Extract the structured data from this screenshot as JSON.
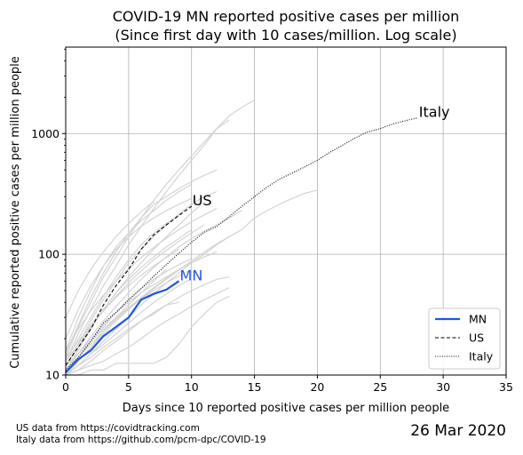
{
  "chart_data": {
    "type": "line",
    "title": "COVID-19 MN reported positive cases per million",
    "subtitle": "(Since first day with 10 cases/million. Log scale)",
    "xlabel": "Days since 10 reported positive cases per million people",
    "ylabel": "Cumulative reported positive cases per million people",
    "xlim": [
      0,
      35
    ],
    "ylim": [
      10,
      5200
    ],
    "y_scale": "log",
    "grid": true,
    "x_ticks": [
      "0",
      "5",
      "10",
      "15",
      "20",
      "25",
      "30",
      "35"
    ],
    "y_ticks": [
      "10",
      "100",
      "1000"
    ],
    "legend": {
      "position": "lower-right",
      "entries": [
        "MN",
        "US",
        "Italy"
      ]
    },
    "colors": {
      "MN": "#1f55e6",
      "US": "#000000",
      "Italy": "#000000",
      "states": "#d3d3d3"
    },
    "series": [
      {
        "name": "MN",
        "style": "solid",
        "x": [
          0,
          1,
          2,
          3,
          4,
          5,
          6,
          7,
          8,
          9
        ],
        "y": [
          10.5,
          13.5,
          16,
          21,
          25,
          30,
          42,
          47,
          51,
          60
        ]
      },
      {
        "name": "US",
        "style": "dashed",
        "x": [
          0,
          1,
          2,
          3,
          4,
          5,
          6,
          7,
          8,
          9,
          10
        ],
        "y": [
          12,
          17,
          24,
          38,
          55,
          75,
          110,
          145,
          175,
          210,
          250
        ]
      },
      {
        "name": "Italy",
        "style": "dotted",
        "x": [
          0,
          1,
          2,
          3,
          4,
          5,
          6,
          7,
          8,
          9,
          10,
          11,
          12,
          13,
          14,
          15,
          16,
          17,
          18,
          19,
          20,
          21,
          22,
          23,
          24,
          25,
          26,
          27,
          28
        ],
        "y": [
          11,
          14,
          19,
          27,
          33,
          42,
          52,
          66,
          82,
          102,
          126,
          152,
          170,
          205,
          250,
          300,
          360,
          420,
          470,
          530,
          600,
          700,
          800,
          920,
          1030,
          1100,
          1200,
          1280,
          1350
        ]
      }
    ],
    "background_series": [
      {
        "x": [
          0,
          1,
          2,
          3,
          4,
          5,
          6,
          7,
          8,
          9,
          10,
          11,
          12,
          13,
          14,
          15
        ],
        "y": [
          14,
          25,
          40,
          65,
          95,
          140,
          200,
          280,
          380,
          500,
          650,
          850,
          1100,
          1400,
          1650,
          1900
        ]
      },
      {
        "x": [
          0,
          1,
          2,
          3,
          4,
          5,
          6,
          7,
          8,
          9,
          10,
          11,
          12,
          13
        ],
        "y": [
          13,
          22,
          35,
          55,
          80,
          120,
          170,
          240,
          330,
          450,
          600,
          800,
          1100,
          1300
        ]
      },
      {
        "x": [
          0,
          1,
          2,
          3,
          4,
          5,
          6,
          7,
          8,
          9,
          10,
          11,
          12
        ],
        "y": [
          15,
          26,
          44,
          70,
          105,
          150,
          200,
          260,
          300,
          350,
          400,
          450,
          500
        ]
      },
      {
        "x": [
          0,
          1,
          2,
          3,
          4,
          5,
          6,
          7,
          8,
          9,
          10,
          11,
          12
        ],
        "y": [
          12,
          18,
          28,
          42,
          60,
          85,
          110,
          140,
          175,
          215,
          260,
          300,
          330
        ]
      },
      {
        "x": [
          0,
          1,
          2,
          3,
          4,
          5,
          6,
          7,
          8,
          9,
          10
        ],
        "y": [
          16,
          30,
          50,
          80,
          115,
          150,
          190,
          230,
          280,
          330,
          380
        ]
      },
      {
        "x": [
          0,
          1,
          2,
          3,
          4,
          5,
          6,
          7,
          8,
          9,
          10,
          11
        ],
        "y": [
          11,
          16,
          24,
          35,
          48,
          65,
          85,
          110,
          140,
          175,
          220,
          270
        ]
      },
      {
        "x": [
          0,
          1,
          2,
          3,
          4,
          5,
          6,
          7,
          8,
          9,
          10,
          11,
          12,
          13,
          14,
          15,
          16,
          17,
          18,
          19,
          20
        ],
        "y": [
          10,
          12,
          15,
          19,
          24,
          30,
          38,
          47,
          58,
          70,
          85,
          100,
          120,
          140,
          160,
          200,
          230,
          260,
          290,
          320,
          340
        ]
      },
      {
        "x": [
          0,
          1,
          2,
          3,
          4,
          5,
          6,
          7,
          8,
          9,
          10,
          11,
          12,
          13,
          14
        ],
        "y": [
          11,
          15,
          21,
          28,
          37,
          48,
          62,
          78,
          95,
          115,
          135,
          155,
          175,
          200,
          230
        ]
      },
      {
        "x": [
          0,
          1,
          2,
          3,
          4,
          5,
          6,
          7,
          8,
          9,
          10
        ],
        "y": [
          20,
          35,
          55,
          80,
          110,
          140,
          170,
          200,
          230,
          260,
          290
        ]
      },
      {
        "x": [
          0,
          1,
          2,
          3,
          4,
          5,
          6,
          7,
          8,
          9
        ],
        "y": [
          13,
          20,
          30,
          45,
          65,
          90,
          120,
          150,
          180,
          210
        ]
      },
      {
        "x": [
          0,
          1,
          2,
          3,
          4,
          5,
          6,
          7,
          8,
          9,
          10
        ],
        "y": [
          12,
          17,
          25,
          35,
          48,
          62,
          78,
          95,
          115,
          135,
          160
        ]
      },
      {
        "x": [
          0,
          1,
          2,
          3,
          4,
          5,
          6,
          7,
          8,
          9,
          10
        ],
        "y": [
          11,
          14,
          19,
          25,
          33,
          42,
          52,
          62,
          72,
          82,
          92
        ]
      },
      {
        "x": [
          0,
          1,
          2,
          3,
          4,
          5,
          6,
          7,
          8,
          9
        ],
        "y": [
          14,
          19,
          26,
          34,
          44,
          55,
          67,
          80,
          94,
          110
        ]
      },
      {
        "x": [
          0,
          1,
          2,
          3,
          4,
          5,
          6,
          7,
          8,
          9,
          10,
          11,
          12
        ],
        "y": [
          11,
          15,
          20,
          26,
          33,
          40,
          48,
          56,
          65,
          75,
          85,
          95,
          105
        ]
      },
      {
        "x": [
          0,
          1,
          2,
          3,
          4,
          5,
          6,
          7,
          8,
          9,
          10,
          11,
          12,
          13
        ],
        "y": [
          10,
          12,
          14,
          17,
          20,
          24,
          28,
          32,
          38,
          44,
          50,
          56,
          62,
          65
        ]
      },
      {
        "x": [
          0,
          1,
          2,
          3,
          4,
          5,
          6,
          7,
          8,
          9,
          10,
          11,
          12,
          13
        ],
        "y": [
          10,
          11,
          12,
          13,
          15,
          17,
          20,
          24,
          28,
          32,
          37,
          42,
          47,
          53
        ]
      },
      {
        "x": [
          0,
          1,
          2,
          3,
          4,
          5,
          6,
          7,
          8,
          9,
          10,
          11,
          12,
          13
        ],
        "y": [
          10,
          10,
          11,
          11,
          12.5,
          12.5,
          12.5,
          12.5,
          14,
          18,
          25,
          32,
          40,
          45
        ]
      },
      {
        "x": [
          0,
          1,
          2,
          3,
          4,
          5,
          6,
          7,
          8,
          9,
          10
        ],
        "y": [
          12,
          15,
          19,
          24,
          30,
          36,
          43,
          50,
          58,
          66,
          75
        ]
      },
      {
        "x": [
          0,
          1,
          2,
          3,
          4,
          5,
          6,
          7,
          8
        ],
        "y": [
          10,
          13,
          17,
          23,
          30,
          38,
          48,
          60,
          75
        ]
      },
      {
        "x": [
          0,
          1,
          2,
          3,
          4,
          5,
          6,
          7,
          8,
          9,
          10,
          11
        ],
        "y": [
          13,
          18,
          25,
          34,
          45,
          58,
          73,
          90,
          108,
          128,
          150,
          175
        ]
      },
      {
        "x": [
          0,
          1,
          2,
          3,
          4,
          5,
          6,
          7,
          8,
          9,
          10
        ],
        "y": [
          10,
          12,
          15,
          18,
          22,
          27,
          33,
          40,
          47,
          55,
          63
        ]
      },
      {
        "x": [
          0,
          1,
          2,
          3,
          4,
          5,
          6,
          7,
          8,
          9,
          10,
          11,
          12,
          13
        ],
        "y": [
          10,
          13,
          17,
          22,
          28,
          35,
          43,
          52,
          62,
          74,
          88,
          104,
          122,
          140
        ]
      },
      {
        "x": [
          0,
          1,
          2,
          3,
          4,
          5,
          6,
          7,
          8,
          9,
          10,
          11,
          12
        ],
        "y": [
          16,
          24,
          34,
          46,
          60,
          76,
          94,
          114,
          136,
          160,
          186,
          212,
          240
        ]
      },
      {
        "x": [
          0,
          1,
          2,
          3,
          4,
          5,
          6,
          7,
          8,
          9
        ],
        "y": [
          10,
          11,
          13,
          16,
          19,
          23,
          28,
          33,
          38,
          40
        ]
      },
      {
        "x": [
          0,
          1,
          2,
          3,
          4,
          5,
          6,
          7
        ],
        "y": [
          30,
          50,
          75,
          105,
          140,
          180,
          225,
          275
        ]
      },
      {
        "x": [
          0,
          1,
          2,
          3,
          4,
          5,
          6,
          7,
          8,
          9,
          10
        ],
        "y": [
          11,
          14,
          18,
          23,
          29,
          36,
          44,
          53,
          63,
          74,
          86
        ]
      }
    ],
    "annotations": [
      {
        "text": "US",
        "x": 10,
        "y": 250,
        "color": "#000000"
      },
      {
        "text": "Italy",
        "x": 28,
        "y": 1350,
        "color": "#000000"
      },
      {
        "text": "MN",
        "x": 9,
        "y": 60,
        "color": "#1f55e6"
      }
    ]
  },
  "footnotes": {
    "line1": "US data from https://covidtracking.com",
    "line2": "Italy data from https://github.com/pcm-dpc/COVID-19"
  },
  "date_label": "26 Mar 2020"
}
